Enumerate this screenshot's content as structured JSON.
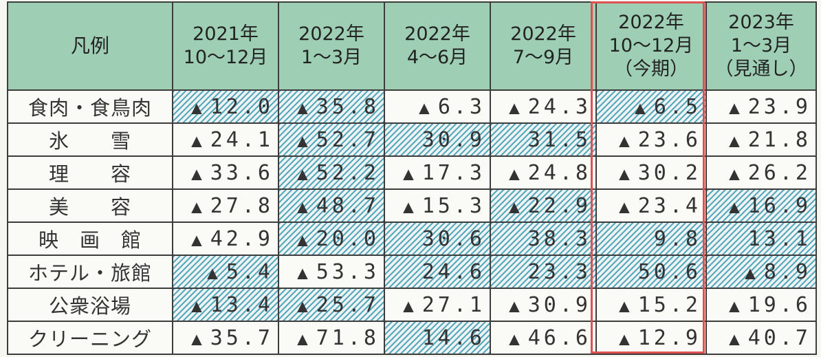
{
  "table": {
    "legend_header": "凡例",
    "columns": [
      {
        "lines": [
          "2021年",
          "10～12月"
        ]
      },
      {
        "lines": [
          "2022年",
          "1～3月"
        ]
      },
      {
        "lines": [
          "2022年",
          "4～6月"
        ]
      },
      {
        "lines": [
          "2022年",
          "7～9月"
        ]
      },
      {
        "lines": [
          "2022年",
          "10～12月",
          "（今期）"
        ]
      },
      {
        "lines": [
          "2023年",
          "1～3月",
          "（見通し）"
        ]
      }
    ],
    "highlighted_column_index": 4,
    "negative_mark": "▲",
    "rows": [
      {
        "label": "食肉・食鳥肉",
        "cells": [
          {
            "neg": true,
            "value": "12.0",
            "hatch": true
          },
          {
            "neg": true,
            "value": "35.8",
            "hatch": true
          },
          {
            "neg": true,
            "value": "6.3",
            "hatch": false
          },
          {
            "neg": true,
            "value": "24.3",
            "hatch": false
          },
          {
            "neg": true,
            "value": "6.5",
            "hatch": true
          },
          {
            "neg": true,
            "value": "23.9",
            "hatch": false
          }
        ]
      },
      {
        "label": "氷　　雪",
        "cells": [
          {
            "neg": true,
            "value": "24.1",
            "hatch": false
          },
          {
            "neg": true,
            "value": "52.7",
            "hatch": true
          },
          {
            "neg": false,
            "value": "30.9",
            "hatch": true
          },
          {
            "neg": false,
            "value": "31.5",
            "hatch": true
          },
          {
            "neg": true,
            "value": "23.6",
            "hatch": false
          },
          {
            "neg": true,
            "value": "21.8",
            "hatch": false
          }
        ]
      },
      {
        "label": "理　　容",
        "cells": [
          {
            "neg": true,
            "value": "33.6",
            "hatch": false
          },
          {
            "neg": true,
            "value": "52.2",
            "hatch": true
          },
          {
            "neg": true,
            "value": "17.3",
            "hatch": false
          },
          {
            "neg": true,
            "value": "24.8",
            "hatch": false
          },
          {
            "neg": true,
            "value": "30.2",
            "hatch": false
          },
          {
            "neg": true,
            "value": "26.2",
            "hatch": false
          }
        ]
      },
      {
        "label": "美　　容",
        "cells": [
          {
            "neg": true,
            "value": "27.8",
            "hatch": false
          },
          {
            "neg": true,
            "value": "48.7",
            "hatch": true
          },
          {
            "neg": true,
            "value": "15.3",
            "hatch": false
          },
          {
            "neg": true,
            "value": "22.9",
            "hatch": true
          },
          {
            "neg": true,
            "value": "23.4",
            "hatch": false
          },
          {
            "neg": true,
            "value": "16.9",
            "hatch": true
          }
        ]
      },
      {
        "label": "映　画　館",
        "cells": [
          {
            "neg": true,
            "value": "42.9",
            "hatch": false
          },
          {
            "neg": true,
            "value": "20.0",
            "hatch": true
          },
          {
            "neg": false,
            "value": "30.6",
            "hatch": true
          },
          {
            "neg": false,
            "value": "38.3",
            "hatch": true
          },
          {
            "neg": false,
            "value": "9.8",
            "hatch": true
          },
          {
            "neg": false,
            "value": "13.1",
            "hatch": true
          }
        ]
      },
      {
        "label": "ホテル・旅館",
        "cells": [
          {
            "neg": true,
            "value": "5.4",
            "hatch": true
          },
          {
            "neg": true,
            "value": "53.3",
            "hatch": false
          },
          {
            "neg": false,
            "value": "24.6",
            "hatch": true
          },
          {
            "neg": false,
            "value": "23.3",
            "hatch": true
          },
          {
            "neg": false,
            "value": "50.6",
            "hatch": true
          },
          {
            "neg": true,
            "value": "8.9",
            "hatch": true
          }
        ]
      },
      {
        "label": "公衆浴場",
        "cells": [
          {
            "neg": true,
            "value": "13.4",
            "hatch": true
          },
          {
            "neg": true,
            "value": "25.7",
            "hatch": true
          },
          {
            "neg": true,
            "value": "27.1",
            "hatch": false
          },
          {
            "neg": true,
            "value": "30.9",
            "hatch": false
          },
          {
            "neg": true,
            "value": "15.2",
            "hatch": false
          },
          {
            "neg": true,
            "value": "19.6",
            "hatch": false
          }
        ]
      },
      {
        "label": "クリーニング",
        "cells": [
          {
            "neg": true,
            "value": "35.7",
            "hatch": false
          },
          {
            "neg": true,
            "value": "71.8",
            "hatch": false
          },
          {
            "neg": false,
            "value": "14.6",
            "hatch": true
          },
          {
            "neg": true,
            "value": "46.6",
            "hatch": false
          },
          {
            "neg": true,
            "value": "12.9",
            "hatch": false
          },
          {
            "neg": true,
            "value": "40.7",
            "hatch": false
          }
        ]
      }
    ]
  }
}
